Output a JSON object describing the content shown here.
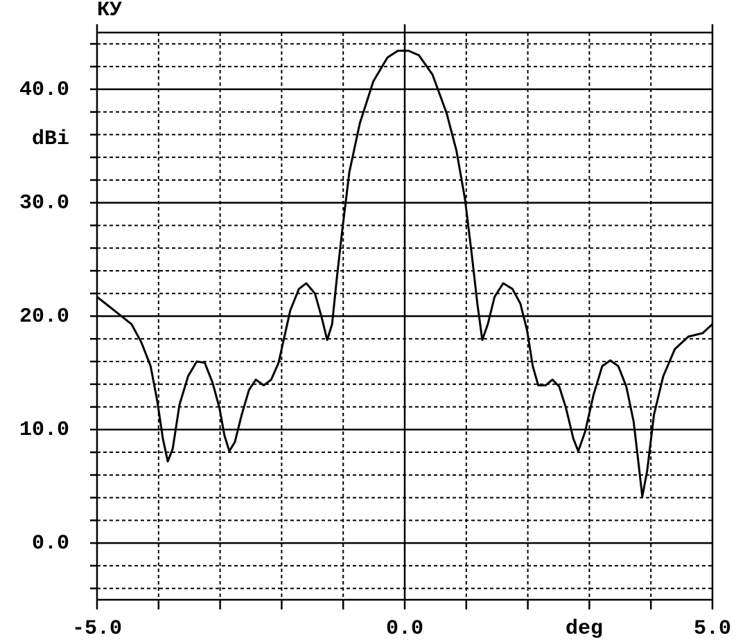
{
  "chart_data": {
    "type": "line",
    "y_label": "КУ",
    "y_unit": "dBi",
    "x_label": "deg",
    "xlim": [
      -5,
      5
    ],
    "xticks": [
      {
        "value": -5,
        "label": "-5.0"
      },
      {
        "value": 0,
        "label": "0.0"
      },
      {
        "value": 5,
        "label": "5.0"
      }
    ],
    "xminor": [
      -4,
      -3,
      -2,
      -1,
      1,
      2,
      3,
      4
    ],
    "ylim": [
      -5,
      45
    ],
    "yticks": [
      {
        "value": 0,
        "label": "0.0"
      },
      {
        "value": 10,
        "label": "10.0"
      },
      {
        "value": 20,
        "label": "20.0"
      },
      {
        "value": 30,
        "label": "30.0"
      },
      {
        "value": 40,
        "label": "40.0"
      }
    ],
    "yminor": [
      -4,
      -2,
      2,
      4,
      6,
      8,
      12,
      14,
      16,
      18,
      22,
      24,
      26,
      28,
      32,
      34,
      36,
      38,
      42,
      44
    ],
    "grid": true,
    "color": "#000000",
    "x": [
      -5,
      -4.72,
      -4.44,
      -4.28,
      -4.13,
      -4.02,
      -3.93,
      -3.85,
      -3.77,
      -3.66,
      -3.52,
      -3.38,
      -3.25,
      -3.12,
      -3.01,
      -2.93,
      -2.85,
      -2.76,
      -2.65,
      -2.53,
      -2.42,
      -2.29,
      -2.17,
      -2.05,
      -1.95,
      -1.86,
      -1.72,
      -1.6,
      -1.46,
      -1.35,
      -1.26,
      -1.18,
      -1.1,
      -1.01,
      -0.9,
      -0.73,
      -0.51,
      -0.28,
      -0.11,
      0.06,
      0.23,
      0.45,
      0.68,
      0.84,
      0.98,
      1.09,
      1.18,
      1.26,
      1.35,
      1.46,
      1.6,
      1.75,
      1.88,
      1.99,
      2.08,
      2.17,
      2.29,
      2.4,
      2.51,
      2.62,
      2.74,
      2.82,
      2.93,
      3.07,
      3.21,
      3.34,
      3.47,
      3.6,
      3.72,
      3.8,
      3.86,
      3.94,
      4.05,
      4.2,
      4.39,
      4.61,
      4.84,
      5
    ],
    "values": [
      21.7,
      20.5,
      19.3,
      17.7,
      15.6,
      12.5,
      9.2,
      7.2,
      8.3,
      12.2,
      14.7,
      16.0,
      15.9,
      14.1,
      11.9,
      9.5,
      8.1,
      8.9,
      11.3,
      13.5,
      14.4,
      13.9,
      14.4,
      15.9,
      18.3,
      20.5,
      22.4,
      22.9,
      22.0,
      19.9,
      17.9,
      19.3,
      23.5,
      27.8,
      32.7,
      37.0,
      40.7,
      42.8,
      43.4,
      43.4,
      43.0,
      41.3,
      37.9,
      34.6,
      30.3,
      25.4,
      21.1,
      17.9,
      19.3,
      21.7,
      22.9,
      22.4,
      21.1,
      18.7,
      15.6,
      13.9,
      13.9,
      14.4,
      13.8,
      11.9,
      9.2,
      8.1,
      9.8,
      13.1,
      15.6,
      16.1,
      15.6,
      13.8,
      10.7,
      7.0,
      4.1,
      6.4,
      11.3,
      14.7,
      17.1,
      18.2,
      18.5,
      19.3
    ]
  }
}
